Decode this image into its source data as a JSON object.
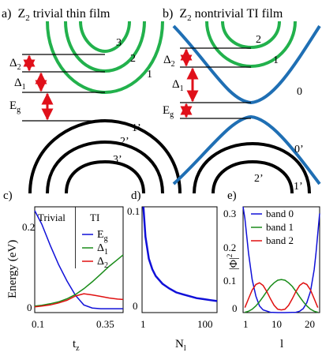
{
  "panel_a": {
    "letter": "a)",
    "title_z": "Z",
    "title_sub": "2",
    "title_rest": " trivial thin film",
    "band_labels": [
      "3",
      "2",
      "1",
      "1’",
      "2’",
      "3’"
    ],
    "gap_labels": {
      "delta2": "Δ",
      "delta2_sub": "2",
      "delta1": "Δ",
      "delta1_sub": "1",
      "eg": "E",
      "eg_sub": "g"
    }
  },
  "panel_b": {
    "letter": "b)",
    "title_z": "Z",
    "title_sub": "2",
    "title_rest": "  nontrivial TI film",
    "band_labels": [
      "2",
      "1",
      "0",
      "0’",
      "2’",
      "1’"
    ],
    "gap_labels": {
      "delta2": "Δ",
      "delta2_sub": "2",
      "delta1": "Δ",
      "delta1_sub": "1",
      "eg": "E",
      "eg_sub": "g"
    }
  },
  "colors": {
    "valence": "#000000",
    "trivial_conduction": "#22b14c",
    "nontrivial_band": "#1f6fb4",
    "arrow": "#e0101a",
    "curve_blue": "#1010d8",
    "curve_green": "#1a8c1a",
    "curve_red": "#e01010"
  },
  "chart_data": [
    {
      "panel": "c)",
      "type": "line",
      "ylabel": "Energy (eV)",
      "xlabel_main": "t",
      "xlabel_sub": "z",
      "xticks": [
        "0.1",
        "0.35"
      ],
      "yticks": [
        "0.2",
        "0"
      ],
      "xlim": [
        0.075,
        0.39
      ],
      "ylim": [
        -0.01,
        0.265
      ],
      "region_labels": [
        "Trivial",
        "TI"
      ],
      "divider_x": 0.22,
      "series": [
        {
          "name_main": "E",
          "name_sub": "g",
          "color": "#1010d8",
          "x": [
            0.075,
            0.1,
            0.13,
            0.16,
            0.19,
            0.22,
            0.25,
            0.28,
            0.31,
            0.34,
            0.37,
            0.39
          ],
          "y": [
            0.255,
            0.22,
            0.165,
            0.115,
            0.072,
            0.035,
            0.01,
            0.002,
            0.0,
            0.0,
            0.0,
            0.0
          ]
        },
        {
          "name_main": "Δ",
          "name_sub": "1",
          "color": "#1a8c1a",
          "x": [
            0.075,
            0.1,
            0.13,
            0.16,
            0.19,
            0.22,
            0.25,
            0.28,
            0.31,
            0.34,
            0.37,
            0.39
          ],
          "y": [
            0.007,
            0.009,
            0.013,
            0.018,
            0.026,
            0.037,
            0.052,
            0.07,
            0.09,
            0.11,
            0.128,
            0.14
          ]
        },
        {
          "name_main": "Δ",
          "name_sub": "2",
          "color": "#e01010",
          "x": [
            0.075,
            0.1,
            0.13,
            0.16,
            0.19,
            0.22,
            0.25,
            0.28,
            0.31,
            0.34,
            0.37,
            0.39
          ],
          "y": [
            0.005,
            0.007,
            0.01,
            0.015,
            0.022,
            0.033,
            0.039,
            0.036,
            0.032,
            0.028,
            0.025,
            0.024
          ]
        }
      ]
    },
    {
      "panel": "d)",
      "type": "line",
      "xlabel_main": "N",
      "xlabel_sub": "l",
      "xticks": [
        "1",
        "100"
      ],
      "yticks": [
        "0.1",
        "0"
      ],
      "xlim": [
        0,
        110
      ],
      "ylim": [
        0,
        0.11
      ],
      "series": [
        {
          "name": "",
          "color": "#1010d8",
          "x": [
            2,
            5,
            10,
            15,
            20,
            30,
            40,
            50,
            60,
            70,
            80,
            90,
            100,
            110
          ],
          "y": [
            0.12,
            0.079,
            0.056,
            0.045,
            0.038,
            0.03,
            0.025,
            0.021,
            0.019,
            0.017,
            0.015,
            0.014,
            0.013,
            0.012
          ]
        }
      ]
    },
    {
      "panel": "e)",
      "type": "line",
      "ylabel": "|Φ|",
      "ylabel_sup": "2",
      "xlabel_main": "l",
      "xticks": [
        "1",
        "10",
        "20"
      ],
      "yticks": [
        "0.3",
        "0.2",
        "0.1",
        "0"
      ],
      "xlim": [
        0.5,
        21.5
      ],
      "ylim": [
        0,
        0.32
      ],
      "series": [
        {
          "name": "band 0",
          "color": "#1010d8",
          "x": [
            0.5,
            1,
            2,
            3,
            4,
            5,
            6,
            8,
            10,
            12,
            15,
            16,
            17,
            18,
            19,
            20,
            20.5,
            21,
            21.5
          ],
          "y": [
            0.33,
            0.285,
            0.18,
            0.1,
            0.05,
            0.02,
            0.008,
            0.001,
            0.0,
            0.0,
            0.001,
            0.004,
            0.012,
            0.03,
            0.065,
            0.13,
            0.18,
            0.24,
            0.3
          ]
        },
        {
          "name": "band 1",
          "color": "#1a8c1a",
          "x": [
            1,
            2,
            3,
            4,
            5,
            6,
            7,
            8,
            9,
            10,
            11,
            12,
            13,
            14,
            15,
            16,
            17,
            18,
            19,
            20,
            21
          ],
          "y": [
            0.001,
            0.004,
            0.01,
            0.02,
            0.033,
            0.048,
            0.064,
            0.079,
            0.09,
            0.098,
            0.1,
            0.098,
            0.09,
            0.079,
            0.064,
            0.048,
            0.033,
            0.02,
            0.01,
            0.004,
            0.001
          ]
        },
        {
          "name": "band 2",
          "color": "#e01010",
          "x": [
            1,
            2,
            3,
            4,
            5,
            6,
            7,
            8,
            9,
            10,
            11,
            12,
            13,
            14,
            15,
            16,
            17,
            18,
            19,
            20,
            21
          ],
          "y": [
            0.015,
            0.042,
            0.068,
            0.085,
            0.09,
            0.082,
            0.064,
            0.042,
            0.022,
            0.01,
            0.008,
            0.01,
            0.022,
            0.042,
            0.064,
            0.082,
            0.09,
            0.085,
            0.068,
            0.042,
            0.015
          ]
        }
      ]
    }
  ]
}
